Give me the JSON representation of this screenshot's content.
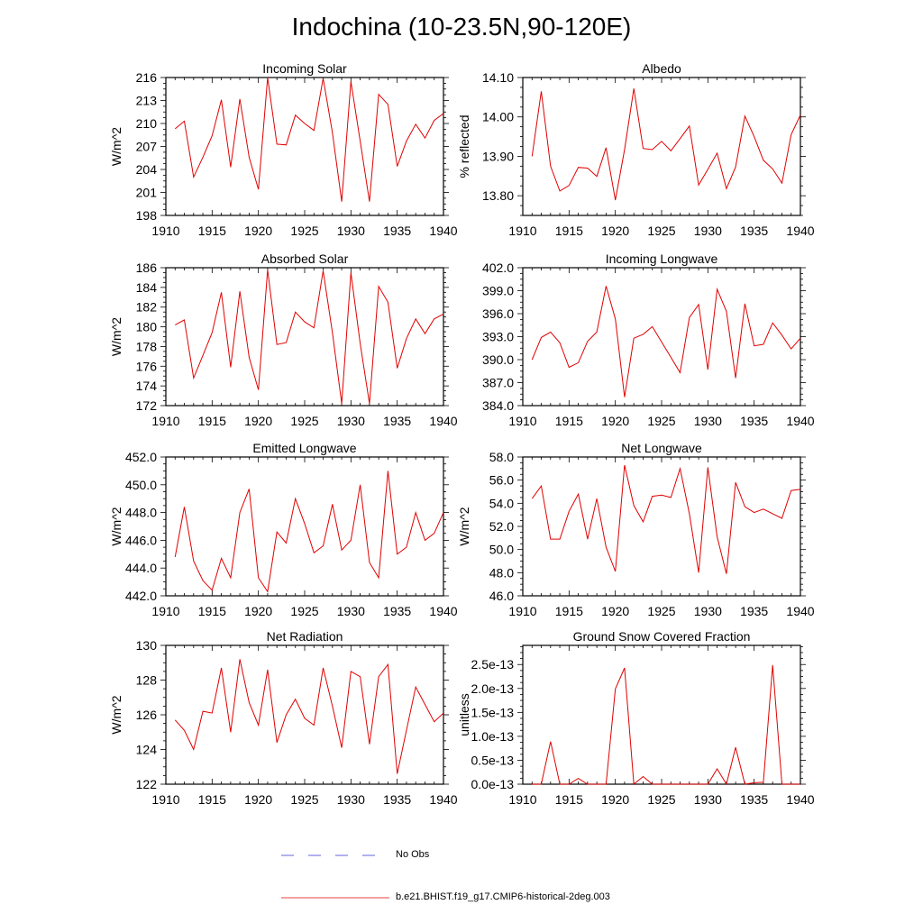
{
  "figure": {
    "title": "Indochina (10-23.5N,90-120E)",
    "legend": [
      {
        "label": "No Obs",
        "color": "#3030d0",
        "dashed": true
      },
      {
        "label": "b.e21.BHIST.f19_g17.CMIP6-historical-2deg.003",
        "color": "#e00000",
        "dashed": false
      }
    ],
    "line_color": "#e00000"
  },
  "chart_data": [
    {
      "type": "line",
      "title": "Incoming Solar",
      "ylabel": "W/m^2",
      "xlim": [
        1910,
        1940
      ],
      "xticks": [
        1910,
        1915,
        1920,
        1925,
        1930,
        1935,
        1940
      ],
      "xticklabels": [
        "1910",
        "1915",
        "1920",
        "1925",
        "1930",
        "1935",
        "1940"
      ],
      "ylim": [
        198,
        216
      ],
      "yticks": [
        198,
        201,
        204,
        207,
        210,
        213,
        216
      ],
      "yticklabels": [
        "198",
        "201",
        "204",
        "207",
        "210",
        "213",
        "216"
      ],
      "x": [
        1911,
        1912,
        1913,
        1914,
        1915,
        1916,
        1917,
        1918,
        1919,
        1920,
        1921,
        1922,
        1923,
        1924,
        1925,
        1926,
        1927,
        1928,
        1929,
        1930,
        1931,
        1932,
        1933,
        1934,
        1935,
        1936,
        1937,
        1938,
        1939,
        1940
      ],
      "series": [
        {
          "values": [
            209.3,
            210.3,
            203.0,
            205.6,
            208.4,
            213.1,
            204.3,
            213.2,
            205.6,
            201.4,
            216.0,
            207.3,
            207.2,
            211.1,
            210.0,
            209.1,
            215.9,
            208.8,
            199.8,
            215.5,
            207.7,
            199.8,
            213.8,
            212.5,
            204.4,
            207.7,
            209.9,
            208.1,
            210.4,
            211.3
          ]
        }
      ]
    },
    {
      "type": "line",
      "title": "Albedo",
      "ylabel": "% reflected",
      "xlim": [
        1910,
        1940
      ],
      "xticks": [
        1910,
        1915,
        1920,
        1925,
        1930,
        1935,
        1940
      ],
      "xticklabels": [
        "1910",
        "1915",
        "1920",
        "1925",
        "1930",
        "1935",
        "1940"
      ],
      "ylim": [
        13.75,
        14.1
      ],
      "yticks": [
        13.8,
        13.9,
        14.0,
        14.1
      ],
      "yticklabels": [
        "13.80",
        "13.90",
        "14.00",
        "14.10"
      ],
      "x": [
        1911,
        1912,
        1913,
        1914,
        1915,
        1916,
        1917,
        1918,
        1919,
        1920,
        1921,
        1922,
        1923,
        1924,
        1925,
        1926,
        1927,
        1928,
        1929,
        1930,
        1931,
        1932,
        1933,
        1934,
        1935,
        1936,
        1937,
        1938,
        1939,
        1940
      ],
      "series": [
        {
          "values": [
            13.9,
            14.065,
            13.875,
            13.812,
            13.826,
            13.872,
            13.87,
            13.849,
            13.922,
            13.789,
            13.917,
            14.072,
            13.92,
            13.917,
            13.938,
            13.914,
            13.945,
            13.977,
            13.827,
            13.867,
            13.908,
            13.818,
            13.873,
            14.002,
            13.95,
            13.89,
            13.868,
            13.832,
            13.955,
            14.005
          ]
        }
      ]
    },
    {
      "type": "line",
      "title": "Absorbed Solar",
      "ylabel": "W/m^2",
      "xlim": [
        1910,
        1940
      ],
      "xticks": [
        1910,
        1915,
        1920,
        1925,
        1930,
        1935,
        1940
      ],
      "xticklabels": [
        "1910",
        "1915",
        "1920",
        "1925",
        "1930",
        "1935",
        "1940"
      ],
      "ylim": [
        172,
        186
      ],
      "yticks": [
        172,
        174,
        176,
        178,
        180,
        182,
        184,
        186
      ],
      "yticklabels": [
        "172",
        "174",
        "176",
        "178",
        "180",
        "182",
        "184",
        "186"
      ],
      "x": [
        1911,
        1912,
        1913,
        1914,
        1915,
        1916,
        1917,
        1918,
        1919,
        1920,
        1921,
        1922,
        1923,
        1924,
        1925,
        1926,
        1927,
        1928,
        1929,
        1930,
        1931,
        1932,
        1933,
        1934,
        1935,
        1936,
        1937,
        1938,
        1939,
        1940
      ],
      "series": [
        {
          "values": [
            180.2,
            180.7,
            174.8,
            177.1,
            179.4,
            183.5,
            175.9,
            183.6,
            176.9,
            173.6,
            185.8,
            178.2,
            178.4,
            181.5,
            180.5,
            179.9,
            185.7,
            179.4,
            172.2,
            185.5,
            178.3,
            172.2,
            184.1,
            182.5,
            175.8,
            178.8,
            180.8,
            179.3,
            180.8,
            181.3
          ]
        }
      ]
    },
    {
      "type": "line",
      "title": "Incoming Longwave",
      "ylabel": "",
      "xlim": [
        1910,
        1940
      ],
      "xticks": [
        1910,
        1915,
        1920,
        1925,
        1930,
        1935,
        1940
      ],
      "xticklabels": [
        "1910",
        "1915",
        "1920",
        "1925",
        "1930",
        "1935",
        "1940"
      ],
      "ylim": [
        384.0,
        402.0
      ],
      "yticks": [
        384.0,
        387.0,
        390.0,
        393.0,
        396.0,
        399.0,
        402.0
      ],
      "yticklabels": [
        "384.0",
        "387.0",
        "390.0",
        "393.0",
        "396.0",
        "399.0",
        "402.0"
      ],
      "x": [
        1911,
        1912,
        1913,
        1914,
        1915,
        1916,
        1917,
        1918,
        1919,
        1920,
        1921,
        1922,
        1923,
        1924,
        1925,
        1926,
        1927,
        1928,
        1929,
        1930,
        1931,
        1932,
        1933,
        1934,
        1935,
        1936,
        1937,
        1938,
        1939,
        1940
      ],
      "series": [
        {
          "values": [
            390.0,
            392.9,
            393.6,
            392.2,
            389.0,
            389.6,
            392.4,
            393.6,
            399.6,
            395.3,
            385.1,
            392.8,
            393.3,
            394.3,
            392.3,
            390.3,
            388.3,
            395.5,
            397.2,
            388.7,
            399.2,
            396.3,
            387.6,
            397.3,
            391.8,
            392.0,
            394.8,
            393.2,
            391.4,
            392.8
          ]
        }
      ]
    },
    {
      "type": "line",
      "title": "Emitted Longwave",
      "ylabel": "W/m^2",
      "xlim": [
        1910,
        1940
      ],
      "xticks": [
        1910,
        1915,
        1920,
        1925,
        1930,
        1935,
        1940
      ],
      "xticklabels": [
        "1910",
        "1915",
        "1920",
        "1925",
        "1930",
        "1935",
        "1940"
      ],
      "ylim": [
        442.0,
        452.0
      ],
      "yticks": [
        442.0,
        444.0,
        446.0,
        448.0,
        450.0,
        452.0
      ],
      "yticklabels": [
        "442.0",
        "444.0",
        "446.0",
        "448.0",
        "450.0",
        "452.0"
      ],
      "x": [
        1911,
        1912,
        1913,
        1914,
        1915,
        1916,
        1917,
        1918,
        1919,
        1920,
        1921,
        1922,
        1923,
        1924,
        1925,
        1926,
        1927,
        1928,
        1929,
        1930,
        1931,
        1932,
        1933,
        1934,
        1935,
        1936,
        1937,
        1938,
        1939,
        1940
      ],
      "series": [
        {
          "values": [
            444.8,
            448.4,
            444.5,
            443.1,
            442.4,
            444.7,
            443.3,
            448.0,
            449.7,
            443.3,
            442.3,
            446.6,
            445.8,
            449.0,
            447.2,
            445.1,
            445.6,
            448.6,
            445.3,
            446.0,
            450.0,
            444.4,
            443.3,
            451.0,
            445.0,
            445.5,
            448.0,
            446.0,
            446.5,
            448.0
          ]
        }
      ]
    },
    {
      "type": "line",
      "title": "Net Longwave",
      "ylabel": "W/m^2",
      "xlim": [
        1910,
        1940
      ],
      "xticks": [
        1910,
        1915,
        1920,
        1925,
        1930,
        1935,
        1940
      ],
      "xticklabels": [
        "1910",
        "1915",
        "1920",
        "1925",
        "1930",
        "1935",
        "1940"
      ],
      "ylim": [
        46.0,
        58.0
      ],
      "yticks": [
        46.0,
        48.0,
        50.0,
        52.0,
        54.0,
        56.0,
        58.0
      ],
      "yticklabels": [
        "46.0",
        "48.0",
        "50.0",
        "52.0",
        "54.0",
        "56.0",
        "58.0"
      ],
      "x": [
        1911,
        1912,
        1913,
        1914,
        1915,
        1916,
        1917,
        1918,
        1919,
        1920,
        1921,
        1922,
        1923,
        1924,
        1925,
        1926,
        1927,
        1928,
        1929,
        1930,
        1931,
        1932,
        1933,
        1934,
        1935,
        1936,
        1937,
        1938,
        1939,
        1940
      ],
      "series": [
        {
          "values": [
            54.4,
            55.5,
            50.9,
            50.9,
            53.3,
            54.8,
            50.9,
            54.4,
            50.2,
            48.1,
            57.3,
            53.8,
            52.4,
            54.6,
            54.7,
            54.5,
            57.0,
            53.1,
            48.0,
            57.1,
            51.1,
            47.9,
            55.8,
            53.7,
            53.2,
            53.5,
            53.1,
            52.7,
            55.1,
            55.2
          ]
        }
      ]
    },
    {
      "type": "line",
      "title": "Net Radiation",
      "ylabel": "W/m^2",
      "xlim": [
        1910,
        1940
      ],
      "xticks": [
        1910,
        1915,
        1920,
        1925,
        1930,
        1935,
        1940
      ],
      "xticklabels": [
        "1910",
        "1915",
        "1920",
        "1925",
        "1930",
        "1935",
        "1940"
      ],
      "ylim": [
        122,
        130
      ],
      "yticks": [
        122,
        124,
        126,
        128,
        130
      ],
      "yticklabels": [
        "122",
        "124",
        "126",
        "128",
        "130"
      ],
      "x": [
        1911,
        1912,
        1913,
        1914,
        1915,
        1916,
        1917,
        1918,
        1919,
        1920,
        1921,
        1922,
        1923,
        1924,
        1925,
        1926,
        1927,
        1928,
        1929,
        1930,
        1931,
        1932,
        1933,
        1934,
        1935,
        1936,
        1937,
        1938,
        1939,
        1940
      ],
      "series": [
        {
          "values": [
            125.7,
            125.1,
            124.0,
            126.2,
            126.1,
            128.7,
            125.0,
            129.2,
            126.7,
            125.4,
            128.6,
            124.4,
            126.0,
            126.9,
            125.8,
            125.4,
            128.7,
            126.5,
            124.1,
            128.5,
            128.2,
            124.3,
            128.2,
            128.9,
            122.6,
            125.1,
            127.6,
            126.6,
            125.6,
            126.1
          ]
        }
      ]
    },
    {
      "type": "line",
      "title": "Ground Snow Covered Fraction",
      "ylabel": "unitless",
      "xlim": [
        1910,
        1940
      ],
      "xticks": [
        1910,
        1915,
        1920,
        1925,
        1930,
        1935,
        1940
      ],
      "xticklabels": [
        "1910",
        "1915",
        "1920",
        "1925",
        "1930",
        "1935",
        "1940"
      ],
      "ylim": [
        0,
        2.9e-13
      ],
      "yticks": [
        0,
        5e-14,
        1e-13,
        1.5e-13,
        2e-13,
        2.5e-13
      ],
      "yticklabels": [
        "0.0e-13",
        "0.5e-13",
        "1.0e-13",
        "1.5e-13",
        "2.0e-13",
        "2.5e-13"
      ],
      "x": [
        1911,
        1912,
        1913,
        1914,
        1915,
        1916,
        1917,
        1918,
        1919,
        1920,
        1921,
        1922,
        1923,
        1924,
        1925,
        1926,
        1927,
        1928,
        1929,
        1930,
        1931,
        1932,
        1933,
        1934,
        1935,
        1936,
        1937,
        1938,
        1939,
        1940
      ],
      "series": [
        {
          "values": [
            0,
            0,
            8.9e-14,
            0,
            0,
            1.2e-14,
            0,
            0,
            0,
            1.99e-13,
            2.43e-13,
            0,
            1.6e-14,
            0,
            0,
            0,
            0,
            0,
            0,
            0,
            3.2e-14,
            0,
            7.7e-14,
            0,
            3e-15,
            4e-15,
            2.49e-13,
            0,
            0,
            0
          ]
        }
      ]
    }
  ]
}
